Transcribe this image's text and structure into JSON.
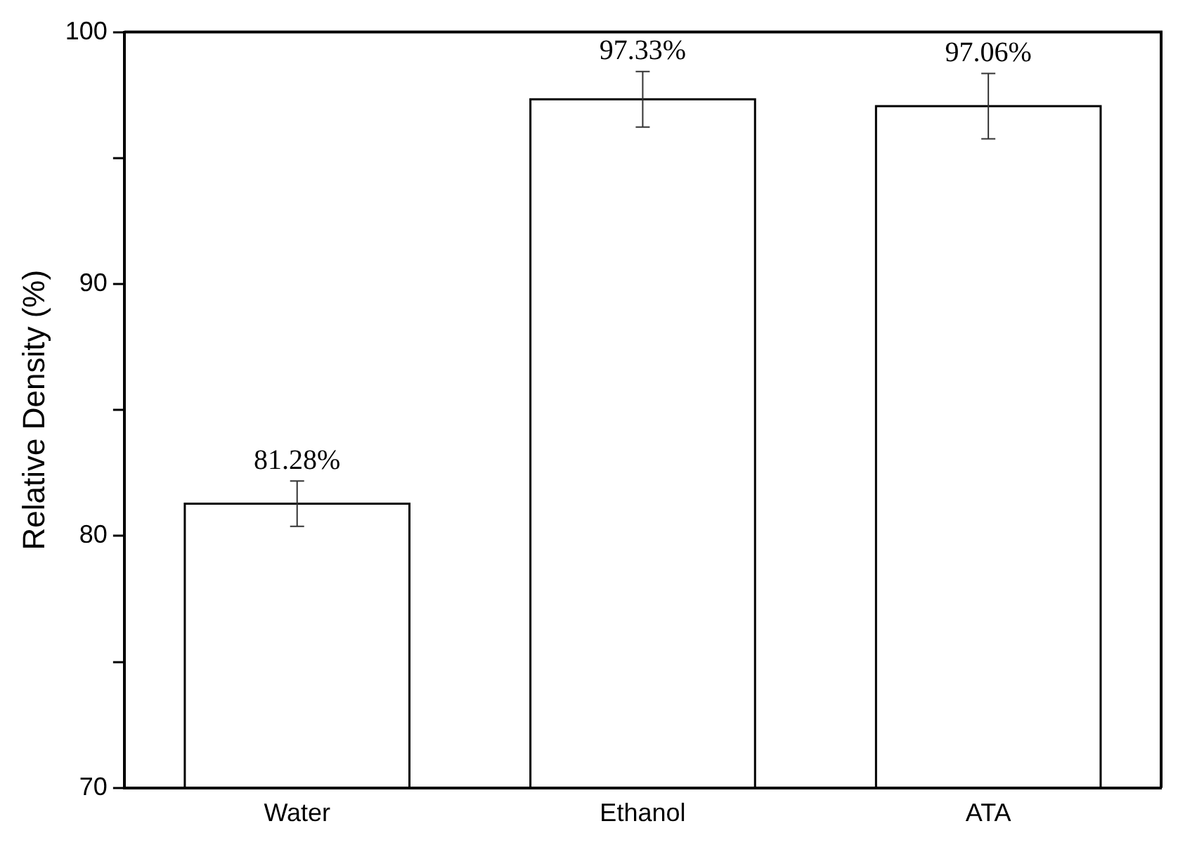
{
  "chart_data": {
    "type": "bar",
    "ylabel": "Relative Density (%)",
    "categories": [
      "Water",
      "Ethanol",
      "ATA"
    ],
    "series": [
      {
        "color": "#000000",
        "values": [
          81.28,
          97.33,
          97.06
        ],
        "errors": [
          0.9,
          1.1,
          1.3
        ],
        "value_labels": [
          "81.28%",
          "97.33%",
          "97.06%"
        ]
      }
    ],
    "ylim": [
      70,
      100
    ],
    "yticks": [
      70,
      {
        "value": 75,
        "label": null
      },
      80,
      {
        "value": 85,
        "label": null
      },
      90,
      {
        "value": 95,
        "label": null
      },
      100
    ],
    "grid": false,
    "legend": false
  }
}
